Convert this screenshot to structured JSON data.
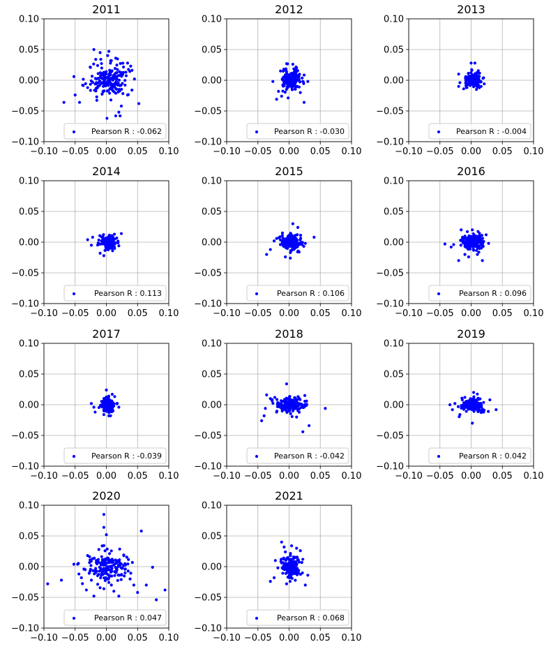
{
  "chart_data": {
    "type": "scatter",
    "figure_layout": "4x3 grid of scatter subplots",
    "common": {
      "xlim": [
        -0.1,
        0.1
      ],
      "ylim": [
        -0.1,
        0.1
      ],
      "xticks": [
        "−0.10",
        "−0.05",
        "0.00",
        "0.05",
        "0.10"
      ],
      "yticks": [
        "0.10",
        "0.05",
        "0.00",
        "−0.05",
        "−0.10"
      ],
      "grid": true,
      "marker_color": "#0000ff",
      "legend_location": "lower right"
    },
    "panels": [
      {
        "title": "2011",
        "legend": "Pearson R : -0.062",
        "spread": [
          0.022,
          0.018
        ],
        "points": [
          [
            -0.068,
            -0.036
          ],
          [
            -0.052,
            0.006
          ],
          [
            -0.05,
            -0.024
          ],
          [
            -0.043,
            -0.036
          ],
          [
            -0.038,
            -0.008
          ],
          [
            -0.02,
            0.05
          ],
          [
            -0.017,
            0.034
          ],
          [
            -0.014,
            0.024
          ],
          [
            -0.01,
            0.045
          ],
          [
            0.004,
            0.047
          ],
          [
            0.008,
            0.032
          ],
          [
            0.015,
            0.036
          ],
          [
            0.021,
            0.014
          ],
          [
            0.034,
            0.028
          ],
          [
            0.039,
            0.023
          ],
          [
            0.045,
            0.002
          ],
          [
            0.041,
            -0.016
          ],
          [
            0.034,
            -0.024
          ],
          [
            0.024,
            -0.042
          ],
          [
            0.02,
            -0.052
          ],
          [
            0.015,
            -0.058
          ],
          [
            0.022,
            -0.058
          ],
          [
            0.001,
            -0.062
          ],
          [
            0.052,
            -0.038
          ],
          [
            -0.03,
            -0.012
          ],
          [
            0.03,
            -0.008
          ]
        ]
      },
      {
        "title": "2012",
        "legend": "Pearson R : -0.030",
        "spread": [
          0.011,
          0.011
        ],
        "points": [
          [
            -0.026,
            -0.002
          ],
          [
            -0.02,
            -0.031
          ],
          [
            -0.017,
            -0.018
          ],
          [
            0.024,
            -0.036
          ],
          [
            0.03,
            -0.002
          ],
          [
            -0.004,
            0.027
          ],
          [
            0.006,
            0.026
          ],
          [
            0.012,
            0.02
          ],
          [
            -0.012,
            -0.026
          ],
          [
            0.018,
            -0.02
          ]
        ]
      },
      {
        "title": "2013",
        "legend": "Pearson R : -0.004",
        "spread": [
          0.008,
          0.008
        ],
        "points": [
          [
            -0.02,
            0.01
          ],
          [
            -0.02,
            -0.01
          ],
          [
            -0.018,
            -0.004
          ],
          [
            0.0,
            0.028
          ],
          [
            0.006,
            0.028
          ],
          [
            0.02,
            0.004
          ],
          [
            0.016,
            -0.01
          ],
          [
            -0.012,
            -0.014
          ]
        ]
      },
      {
        "title": "2014",
        "legend": "Pearson R : 0.113",
        "spread": [
          0.009,
          0.007
        ],
        "points": [
          [
            -0.03,
            0.004
          ],
          [
            -0.024,
            -0.005
          ],
          [
            -0.022,
            0.008
          ],
          [
            0.024,
            0.014
          ],
          [
            0.02,
            -0.006
          ],
          [
            -0.004,
            -0.022
          ],
          [
            -0.01,
            -0.018
          ],
          [
            0.01,
            -0.014
          ]
        ]
      },
      {
        "title": "2015",
        "legend": "Pearson R : 0.106",
        "spread": [
          0.011,
          0.009
        ],
        "points": [
          [
            -0.036,
            -0.02
          ],
          [
            -0.03,
            -0.012
          ],
          [
            -0.024,
            0.002
          ],
          [
            -0.02,
            0.006
          ],
          [
            -0.014,
            -0.004
          ],
          [
            0.04,
            0.008
          ],
          [
            0.026,
            -0.002
          ],
          [
            0.006,
            0.03
          ],
          [
            0.014,
            0.024
          ],
          [
            -0.006,
            -0.024
          ],
          [
            0.002,
            -0.026
          ],
          [
            0.016,
            -0.016
          ]
        ]
      },
      {
        "title": "2016",
        "legend": "Pearson R : 0.096",
        "spread": [
          0.011,
          0.008
        ],
        "points": [
          [
            -0.042,
            -0.003
          ],
          [
            -0.032,
            -0.008
          ],
          [
            -0.028,
            -0.004
          ],
          [
            -0.02,
            -0.03
          ],
          [
            -0.016,
            0.02
          ],
          [
            -0.01,
            -0.02
          ],
          [
            0.028,
            -0.002
          ],
          [
            0.024,
            0.012
          ],
          [
            0.018,
            -0.03
          ],
          [
            0.002,
            0.02
          ],
          [
            -0.004,
            -0.024
          ],
          [
            0.01,
            -0.02
          ]
        ]
      },
      {
        "title": "2017",
        "legend": "Pearson R : -0.039",
        "spread": [
          0.007,
          0.008
        ],
        "points": [
          [
            -0.024,
            0.002
          ],
          [
            -0.02,
            -0.004
          ],
          [
            -0.018,
            -0.012
          ],
          [
            0.02,
            -0.004
          ],
          [
            0.0,
            0.024
          ],
          [
            0.004,
            -0.018
          ],
          [
            -0.004,
            -0.016
          ]
        ]
      },
      {
        "title": "2018",
        "legend": "Pearson R : -0.042",
        "spread": [
          0.016,
          0.008
        ],
        "points": [
          [
            -0.044,
            -0.026
          ],
          [
            -0.04,
            -0.018
          ],
          [
            -0.038,
            -0.006
          ],
          [
            -0.036,
            0.016
          ],
          [
            -0.03,
            0.01
          ],
          [
            0.058,
            -0.006
          ],
          [
            0.032,
            -0.034
          ],
          [
            0.022,
            -0.044
          ],
          [
            -0.004,
            0.034
          ],
          [
            0.028,
            0.006
          ],
          [
            -0.02,
            -0.012
          ],
          [
            0.012,
            -0.02
          ]
        ]
      },
      {
        "title": "2019",
        "legend": "Pearson R : 0.042",
        "spread": [
          0.011,
          0.008
        ],
        "points": [
          [
            -0.034,
            0.0
          ],
          [
            -0.03,
            -0.008
          ],
          [
            -0.026,
            0.002
          ],
          [
            -0.018,
            -0.016
          ],
          [
            0.04,
            -0.008
          ],
          [
            0.03,
            0.008
          ],
          [
            0.002,
            -0.03
          ],
          [
            0.004,
            0.02
          ],
          [
            -0.01,
            0.012
          ],
          [
            0.02,
            -0.012
          ]
        ]
      },
      {
        "title": "2020",
        "legend": "Pearson R : 0.047",
        "spread": [
          0.022,
          0.016
        ],
        "points": [
          [
            -0.094,
            -0.028
          ],
          [
            -0.072,
            -0.022
          ],
          [
            -0.052,
            0.004
          ],
          [
            -0.046,
            0.004
          ],
          [
            -0.044,
            -0.012
          ],
          [
            -0.04,
            -0.018
          ],
          [
            -0.036,
            -0.004
          ],
          [
            -0.032,
            -0.038
          ],
          [
            -0.024,
            -0.022
          ],
          [
            -0.02,
            -0.048
          ],
          [
            -0.016,
            0.01
          ],
          [
            -0.012,
            0.028
          ],
          [
            -0.004,
            0.064
          ],
          [
            -0.004,
            0.085
          ],
          [
            0.0,
            0.052
          ],
          [
            0.012,
            -0.04
          ],
          [
            0.02,
            -0.048
          ],
          [
            0.03,
            -0.01
          ],
          [
            0.038,
            -0.02
          ],
          [
            0.044,
            -0.03
          ],
          [
            0.05,
            -0.042
          ],
          [
            0.056,
            0.058
          ],
          [
            0.064,
            -0.03
          ],
          [
            0.074,
            -0.001
          ],
          [
            0.08,
            -0.054
          ],
          [
            0.094,
            -0.038
          ],
          [
            -0.03,
            0.018
          ],
          [
            0.028,
            0.018
          ],
          [
            -0.004,
            -0.036
          ],
          [
            0.008,
            -0.03
          ]
        ]
      },
      {
        "title": "2021",
        "legend": "Pearson R : 0.068",
        "spread": [
          0.009,
          0.011
        ],
        "points": [
          [
            -0.03,
            -0.024
          ],
          [
            -0.024,
            -0.018
          ],
          [
            -0.018,
            -0.002
          ],
          [
            -0.012,
            0.04
          ],
          [
            -0.008,
            0.032
          ],
          [
            -0.006,
            0.024
          ],
          [
            0.004,
            0.034
          ],
          [
            0.012,
            0.03
          ],
          [
            0.018,
            0.026
          ],
          [
            0.026,
            -0.03
          ],
          [
            0.03,
            -0.014
          ],
          [
            -0.004,
            -0.028
          ],
          [
            -0.022,
            0.01
          ],
          [
            0.022,
            0.012
          ]
        ]
      }
    ]
  }
}
